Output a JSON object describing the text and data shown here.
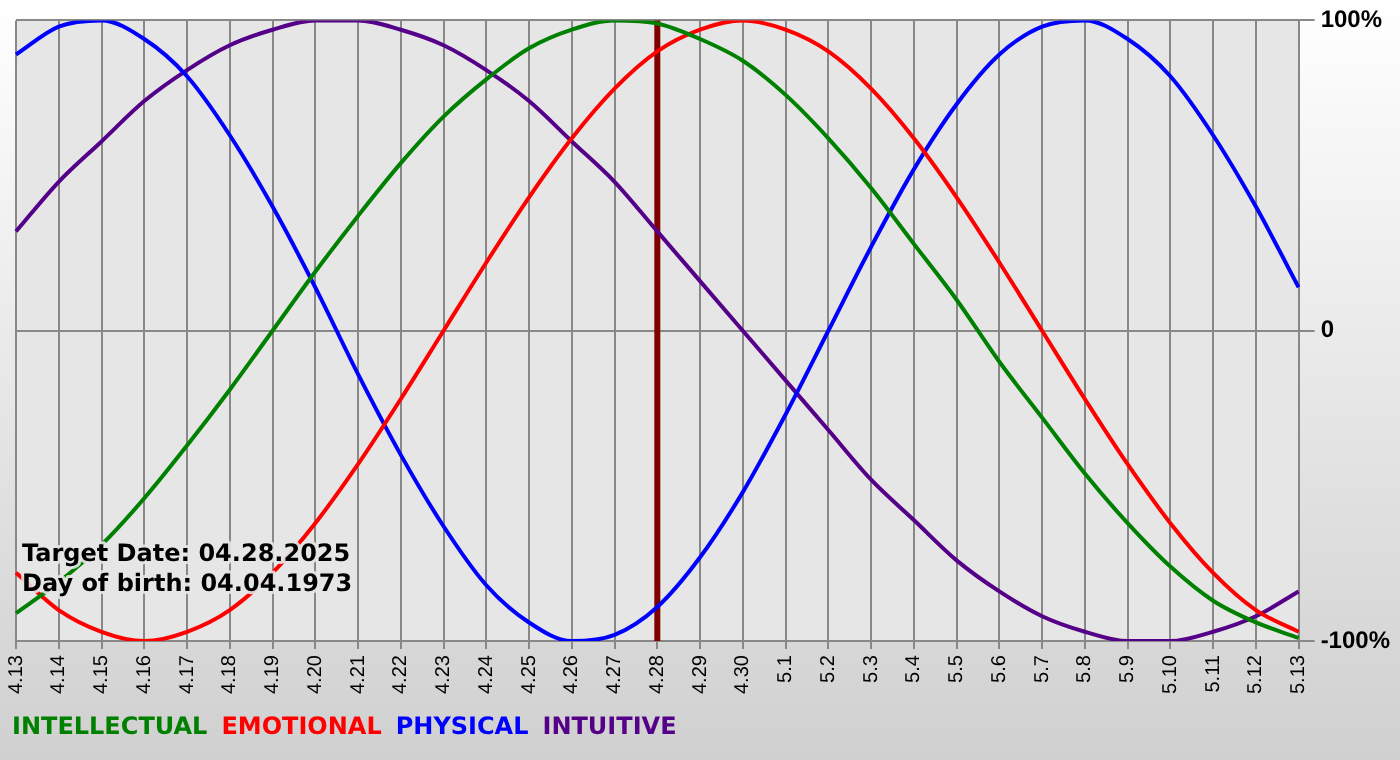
{
  "chart_data": {
    "type": "line",
    "categories": [
      "4.13",
      "4.14",
      "4.15",
      "4.16",
      "4.17",
      "4.18",
      "4.19",
      "4.20",
      "4.21",
      "4.22",
      "4.23",
      "4.24",
      "4.25",
      "4.26",
      "4.27",
      "4.28",
      "4.29",
      "4.30",
      "5.1",
      "5.2",
      "5.3",
      "5.4",
      "5.5",
      "5.6",
      "5.7",
      "5.8",
      "5.9",
      "5.10",
      "5.11",
      "5.12",
      "5.13"
    ],
    "series": [
      {
        "name": "INTELLECTUAL",
        "color": "#008000",
        "values": [
          -91,
          -81,
          -69,
          -54,
          -37,
          -19,
          0,
          19,
          37,
          54,
          69,
          81,
          91,
          97,
          100,
          99,
          94,
          87,
          76,
          62,
          46,
          28,
          10,
          -10,
          -28,
          -46,
          -62,
          -76,
          -87,
          -94,
          -99
        ]
      },
      {
        "name": "EMOTIONAL",
        "color": "#ff0000",
        "values": [
          -78,
          -90,
          -97,
          -100,
          -97,
          -90,
          -78,
          -62,
          -43,
          -22,
          0,
          22,
          43,
          62,
          78,
          90,
          97,
          100,
          97,
          90,
          78,
          62,
          43,
          22,
          0,
          -22,
          -43,
          -62,
          -78,
          -90,
          -97
        ]
      },
      {
        "name": "PHYSICAL",
        "color": "#0000ff",
        "values": [
          89,
          98,
          100,
          94,
          82,
          63,
          40,
          14,
          -14,
          -40,
          -63,
          -82,
          -94,
          -100,
          -98,
          -89,
          -73,
          -52,
          -27,
          0,
          27,
          52,
          73,
          89,
          98,
          100,
          94,
          82,
          63,
          40,
          14
        ]
      },
      {
        "name": "INTUITIVE",
        "color": "#550088",
        "values": [
          32,
          48,
          61,
          74,
          84,
          92,
          97,
          100,
          100,
          97,
          92,
          84,
          74,
          61,
          48,
          32,
          16,
          0,
          -16,
          -32,
          -48,
          -61,
          -74,
          -84,
          -92,
          -97,
          -100,
          -100,
          -97,
          -92,
          -84
        ]
      }
    ],
    "ylim": [
      -100,
      100
    ],
    "yticks": [
      {
        "value": -100,
        "label": "-100%"
      },
      0,
      {
        "value": 100,
        "label": "100%"
      }
    ],
    "ref_lines": [
      {
        "axis": "x",
        "value": "4.28",
        "color": "#800000"
      }
    ],
    "annotations": [
      "Target Date: 04.28.2025",
      "Day of birth: 04.04.1973"
    ],
    "grid": true,
    "legend": "bottom",
    "marker": "none",
    "line_style": "solid"
  }
}
